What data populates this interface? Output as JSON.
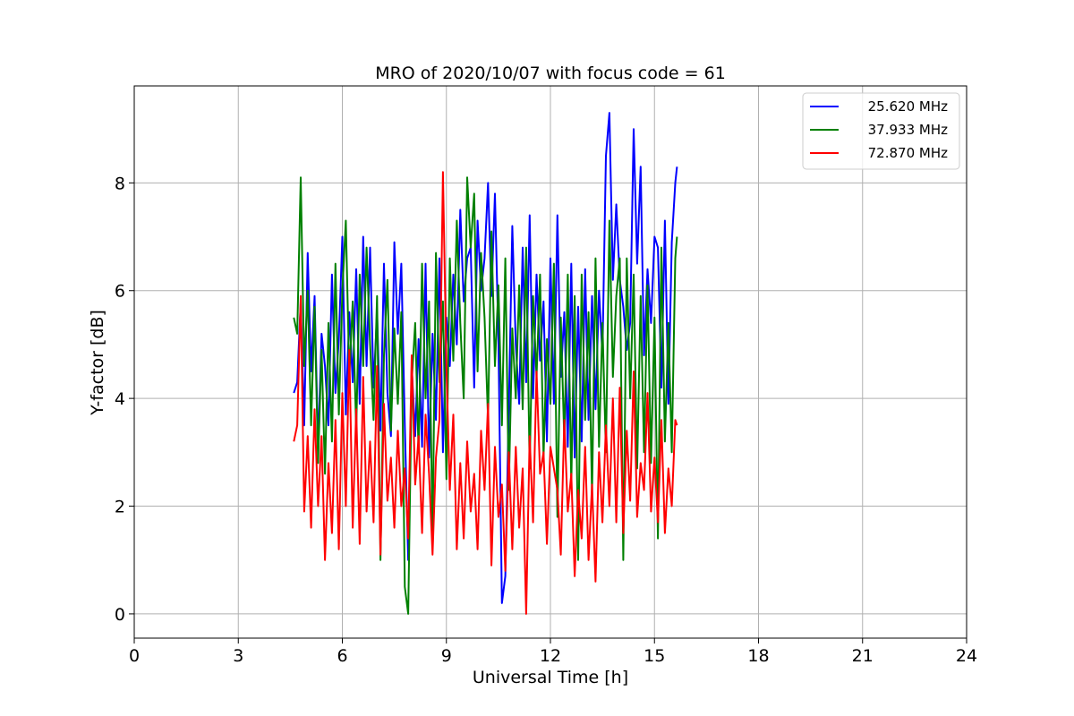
{
  "chart_data": {
    "type": "line",
    "title": "MRO of 2020/10/07 with focus code = 61",
    "xlabel": "Universal Time [h]",
    "ylabel": "Y-factor [dB]",
    "xlim": [
      0,
      24
    ],
    "ylim": [
      -0.45,
      9.8
    ],
    "xticks": [
      0,
      3,
      6,
      9,
      12,
      15,
      18,
      21,
      24
    ],
    "yticks": [
      0,
      2,
      4,
      6,
      8
    ],
    "x_tick_labels": [
      "0",
      "3",
      "6",
      "9",
      "12",
      "15",
      "18",
      "21",
      "24"
    ],
    "y_tick_labels": [
      "0",
      "2",
      "4",
      "6",
      "8"
    ],
    "grid": true,
    "legend_position": "top-right",
    "series": [
      {
        "name": "25.620 MHz",
        "color": "#0000ff",
        "x": [
          4.6,
          4.7,
          4.8,
          4.9,
          5.0,
          5.1,
          5.2,
          5.3,
          5.4,
          5.5,
          5.6,
          5.7,
          5.8,
          5.9,
          6.0,
          6.1,
          6.2,
          6.3,
          6.4,
          6.5,
          6.6,
          6.7,
          6.8,
          6.9,
          7.0,
          7.1,
          7.2,
          7.3,
          7.4,
          7.5,
          7.6,
          7.7,
          7.8,
          7.9,
          8.0,
          8.1,
          8.2,
          8.3,
          8.4,
          8.5,
          8.6,
          8.7,
          8.8,
          8.9,
          9.0,
          9.1,
          9.2,
          9.3,
          9.4,
          9.5,
          9.6,
          9.7,
          9.8,
          9.9,
          10.0,
          10.1,
          10.2,
          10.3,
          10.4,
          10.5,
          10.6,
          10.7,
          10.8,
          10.9,
          11.0,
          11.1,
          11.2,
          11.3,
          11.4,
          11.5,
          11.6,
          11.7,
          11.8,
          11.9,
          12.0,
          12.1,
          12.2,
          12.3,
          12.4,
          12.5,
          12.6,
          12.7,
          12.8,
          12.9,
          13.0,
          13.1,
          13.2,
          13.3,
          13.4,
          13.5,
          13.6,
          13.7,
          13.8,
          13.9,
          14.0,
          14.1,
          14.2,
          14.3,
          14.4,
          14.5,
          14.6,
          14.7,
          14.8,
          14.9,
          15.0,
          15.1,
          15.2,
          15.3,
          15.4,
          15.5,
          15.6,
          15.65
        ],
        "y": [
          4.1,
          4.3,
          5.8,
          3.5,
          6.7,
          4.5,
          5.9,
          3.1,
          5.2,
          4.6,
          3.5,
          6.3,
          4.1,
          5.1,
          7.0,
          3.7,
          5.6,
          4.3,
          6.4,
          3.9,
          7.0,
          4.6,
          6.8,
          4.2,
          5.6,
          3.4,
          6.5,
          4.1,
          3.3,
          6.9,
          5.2,
          6.5,
          3.5,
          1.0,
          4.6,
          3.3,
          5.1,
          3.1,
          6.5,
          2.9,
          5.2,
          3.6,
          6.6,
          3.0,
          5.5,
          4.6,
          6.3,
          5.0,
          7.5,
          5.8,
          6.6,
          6.8,
          4.2,
          7.3,
          6.0,
          6.6,
          8.0,
          5.9,
          7.8,
          5.1,
          0.2,
          0.7,
          3.8,
          7.2,
          5.0,
          3.9,
          6.8,
          4.3,
          7.4,
          4.0,
          6.3,
          4.7,
          5.8,
          3.2,
          6.6,
          3.9,
          7.4,
          4.4,
          5.6,
          3.1,
          6.5,
          2.9,
          5.7,
          3.2,
          6.4,
          3.6,
          5.9,
          3.8,
          6.0,
          4.8,
          8.5,
          9.3,
          6.2,
          7.6,
          6.2,
          5.7,
          4.9,
          5.4,
          9.0,
          6.5,
          8.3,
          4.8,
          6.4,
          5.4,
          7.0,
          6.8,
          4.2,
          7.3,
          3.9,
          6.9,
          8.0,
          8.3
        ]
      },
      {
        "name": "37.933 MHz",
        "color": "#008000",
        "x": [
          4.6,
          4.7,
          4.8,
          4.9,
          5.0,
          5.1,
          5.2,
          5.3,
          5.4,
          5.5,
          5.6,
          5.7,
          5.8,
          5.9,
          6.0,
          6.1,
          6.2,
          6.3,
          6.4,
          6.5,
          6.6,
          6.7,
          6.8,
          6.9,
          7.0,
          7.1,
          7.2,
          7.3,
          7.4,
          7.5,
          7.6,
          7.7,
          7.8,
          7.9,
          8.0,
          8.1,
          8.2,
          8.3,
          8.4,
          8.5,
          8.6,
          8.7,
          8.8,
          8.9,
          9.0,
          9.1,
          9.2,
          9.3,
          9.4,
          9.5,
          9.6,
          9.7,
          9.8,
          9.9,
          10.0,
          10.1,
          10.2,
          10.3,
          10.4,
          10.5,
          10.6,
          10.7,
          10.8,
          10.9,
          11.0,
          11.1,
          11.2,
          11.3,
          11.4,
          11.5,
          11.6,
          11.7,
          11.8,
          11.9,
          12.0,
          12.1,
          12.2,
          12.3,
          12.4,
          12.5,
          12.6,
          12.7,
          12.8,
          12.9,
          13.0,
          13.1,
          13.2,
          13.3,
          13.4,
          13.5,
          13.6,
          13.7,
          13.8,
          13.9,
          14.0,
          14.1,
          14.2,
          14.3,
          14.4,
          14.5,
          14.6,
          14.7,
          14.8,
          14.9,
          15.0,
          15.1,
          15.2,
          15.3,
          15.4,
          15.5,
          15.6,
          15.65
        ],
        "y": [
          5.5,
          5.2,
          8.1,
          4.6,
          6.0,
          3.5,
          5.7,
          2.8,
          4.9,
          2.6,
          5.4,
          3.2,
          6.5,
          3.7,
          6.0,
          7.3,
          4.4,
          5.8,
          3.4,
          6.3,
          4.6,
          6.8,
          5.0,
          3.6,
          5.9,
          1.0,
          4.8,
          6.2,
          3.4,
          5.3,
          3.9,
          5.6,
          0.5,
          0.0,
          4.3,
          5.4,
          3.0,
          6.5,
          4.0,
          5.8,
          1.4,
          6.7,
          4.3,
          5.8,
          2.5,
          6.6,
          4.7,
          7.3,
          5.4,
          4.0,
          8.1,
          6.8,
          7.8,
          4.5,
          6.7,
          5.5,
          3.6,
          7.1,
          4.6,
          6.1,
          3.5,
          6.6,
          2.3,
          5.3,
          4.0,
          6.1,
          3.8,
          6.8,
          2.7,
          5.9,
          4.4,
          6.3,
          2.9,
          5.1,
          3.9,
          6.5,
          1.8,
          5.5,
          3.2,
          6.3,
          2.4,
          5.9,
          1.0,
          6.3,
          3.6,
          5.6,
          2.2,
          6.6,
          3.1,
          5.4,
          3.0,
          7.3,
          4.4,
          5.9,
          6.6,
          1.0,
          6.6,
          4.0,
          6.3,
          2.7,
          5.9,
          3.0,
          6.1,
          2.8,
          5.5,
          1.4,
          6.8,
          3.2,
          5.4,
          3.0,
          6.6,
          7.0
        ]
      },
      {
        "name": "72.870 MHz",
        "color": "#ff0000",
        "x": [
          4.6,
          4.7,
          4.8,
          4.9,
          5.0,
          5.1,
          5.2,
          5.3,
          5.4,
          5.5,
          5.6,
          5.7,
          5.8,
          5.9,
          6.0,
          6.1,
          6.2,
          6.3,
          6.4,
          6.5,
          6.6,
          6.7,
          6.8,
          6.9,
          7.0,
          7.1,
          7.2,
          7.3,
          7.4,
          7.5,
          7.6,
          7.7,
          7.8,
          7.9,
          8.0,
          8.1,
          8.2,
          8.3,
          8.4,
          8.5,
          8.6,
          8.7,
          8.8,
          8.9,
          9.0,
          9.1,
          9.2,
          9.3,
          9.4,
          9.5,
          9.6,
          9.7,
          9.8,
          9.9,
          10.0,
          10.1,
          10.2,
          10.3,
          10.4,
          10.5,
          10.6,
          10.7,
          10.8,
          10.9,
          11.0,
          11.1,
          11.2,
          11.3,
          11.4,
          11.5,
          11.6,
          11.7,
          11.8,
          11.9,
          12.0,
          12.1,
          12.2,
          12.3,
          12.4,
          12.5,
          12.6,
          12.7,
          12.8,
          12.9,
          13.0,
          13.1,
          13.2,
          13.3,
          13.4,
          13.5,
          13.6,
          13.7,
          13.8,
          13.9,
          14.0,
          14.1,
          14.2,
          14.3,
          14.4,
          14.5,
          14.6,
          14.7,
          14.8,
          14.9,
          15.0,
          15.1,
          15.2,
          15.3,
          15.4,
          15.5,
          15.6,
          15.65
        ],
        "y": [
          3.2,
          3.5,
          5.9,
          1.9,
          3.3,
          1.6,
          3.8,
          2.0,
          3.3,
          1.0,
          2.8,
          1.5,
          3.6,
          1.2,
          4.1,
          2.0,
          4.9,
          1.6,
          3.8,
          1.3,
          4.4,
          1.9,
          3.2,
          1.7,
          4.6,
          1.1,
          3.9,
          2.1,
          2.9,
          1.6,
          3.4,
          2.0,
          2.7,
          1.4,
          4.8,
          2.4,
          3.3,
          1.5,
          3.7,
          2.6,
          1.1,
          2.9,
          3.6,
          8.2,
          4.6,
          2.3,
          3.7,
          1.2,
          2.8,
          1.4,
          3.2,
          1.9,
          2.6,
          1.2,
          3.4,
          2.3,
          3.9,
          0.9,
          3.1,
          1.8,
          2.4,
          0.8,
          3.0,
          1.2,
          3.1,
          1.6,
          2.7,
          0.0,
          3.3,
          1.7,
          4.5,
          2.6,
          3.0,
          1.3,
          3.1,
          2.7,
          2.3,
          1.1,
          3.6,
          1.9,
          2.6,
          0.7,
          2.3,
          1.4,
          3.1,
          1.0,
          2.4,
          0.6,
          3.0,
          1.7,
          3.5,
          2.0,
          4.0,
          1.7,
          4.2,
          1.5,
          3.4,
          2.1,
          4.5,
          1.8,
          2.8,
          2.3,
          4.1,
          1.9,
          2.9,
          1.7,
          3.6,
          1.5,
          2.7,
          2.0,
          3.6,
          3.5
        ]
      }
    ]
  }
}
